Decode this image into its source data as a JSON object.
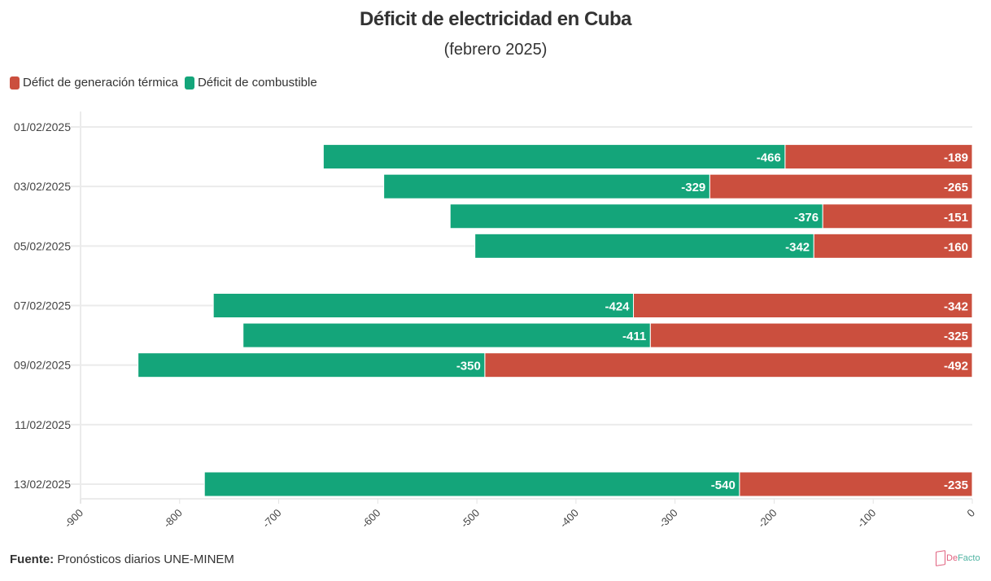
{
  "header": {
    "title": "Déficit de electricidad en Cuba",
    "subtitle": "(febrero 2025)"
  },
  "legend": [
    {
      "label": "Défict de generación térmica",
      "color": "#cb4f3e"
    },
    {
      "label": "Déficit de combustible",
      "color": "#14a57a"
    }
  ],
  "footer": {
    "source_label": "Fuente:",
    "source_text": "Pronósticos diarios UNE-MINEM",
    "logo_text_a": "De",
    "logo_text_b": "Facto"
  },
  "chart_data": {
    "type": "bar",
    "orientation": "horizontal",
    "stacked": true,
    "title": "Déficit de electricidad en Cuba",
    "subtitle": "(febrero 2025)",
    "xlabel": "",
    "ylabel": "",
    "xlim": [
      -900,
      0
    ],
    "x_ticks": [
      -900,
      -800,
      -700,
      -600,
      -500,
      -400,
      -300,
      -200,
      -100,
      0
    ],
    "y_axis_type": "date",
    "y_range": [
      "01/02/2025",
      "13/02/2025"
    ],
    "y_ticks": [
      "01/02/2025",
      "03/02/2025",
      "05/02/2025",
      "07/02/2025",
      "09/02/2025",
      "11/02/2025",
      "13/02/2025"
    ],
    "grid": true,
    "legend_position": "top-left",
    "categories": [
      "02/02/2025",
      "03/02/2025",
      "04/02/2025",
      "05/02/2025",
      "07/02/2025",
      "08/02/2025",
      "09/02/2025",
      "13/02/2025"
    ],
    "series": [
      {
        "name": "Défict de generación térmica",
        "color": "#cb4f3e",
        "values": [
          -189,
          -265,
          -151,
          -160,
          -342,
          -325,
          -492,
          -235
        ]
      },
      {
        "name": "Déficit de combustible",
        "color": "#14a57a",
        "values": [
          -466,
          -329,
          -376,
          -342,
          -424,
          -411,
          -350,
          -540
        ]
      }
    ],
    "data_labels": true,
    "source": "Fuente: Pronósticos diarios UNE-MINEM"
  }
}
